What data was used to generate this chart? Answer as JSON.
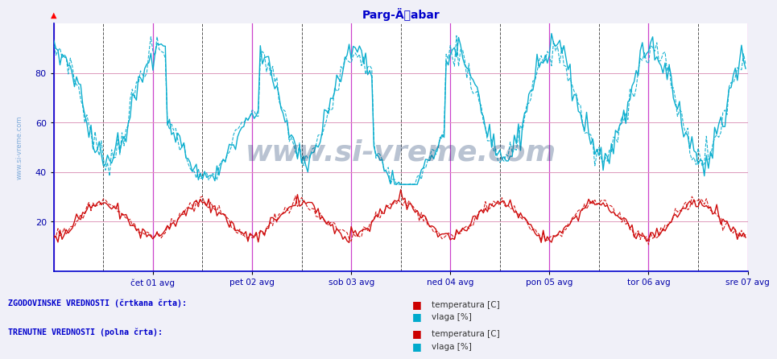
{
  "title": "Parg-Äabar",
  "title_color": "#0000cc",
  "bg_color": "#f0f0f8",
  "plot_bg": "#ffffff",
  "yticks": [
    20,
    40,
    60,
    80
  ],
  "ylim": [
    0,
    100
  ],
  "n_points": 336,
  "days": [
    "čet 01 avg",
    "pet 02 avg",
    "sob 03 avg",
    "ned 04 avg",
    "pon 05 avg",
    "tor 06 avg",
    "sre 07 avg"
  ],
  "day_positions": [
    48,
    96,
    144,
    192,
    240,
    288,
    336
  ],
  "magenta_vline_positions": [
    0,
    48,
    96,
    144,
    192,
    240,
    288,
    336
  ],
  "dark_vline_positions": [
    24,
    72,
    120,
    168,
    216,
    264,
    312
  ],
  "watermark": "www.si-vreme.com",
  "watermark_color": "#1a3a6a",
  "watermark_alpha": 0.3,
  "legend_text1": "ZGODOVINSKE VREDNOSTI (črtkana črta):",
  "legend_text2": "TRENUTNE VREDNOSTI (polna črta):",
  "legend_color": "#0000cc",
  "temp_color": "#cc0000",
  "vlaga_color": "#00aacc",
  "sidebar_text": "www.si-vreme.com",
  "sidebar_color": "#4488cc",
  "hgrid_color": "#dd99bb",
  "vgrid_magenta": "#cc44cc",
  "vgrid_dark": "#555555"
}
